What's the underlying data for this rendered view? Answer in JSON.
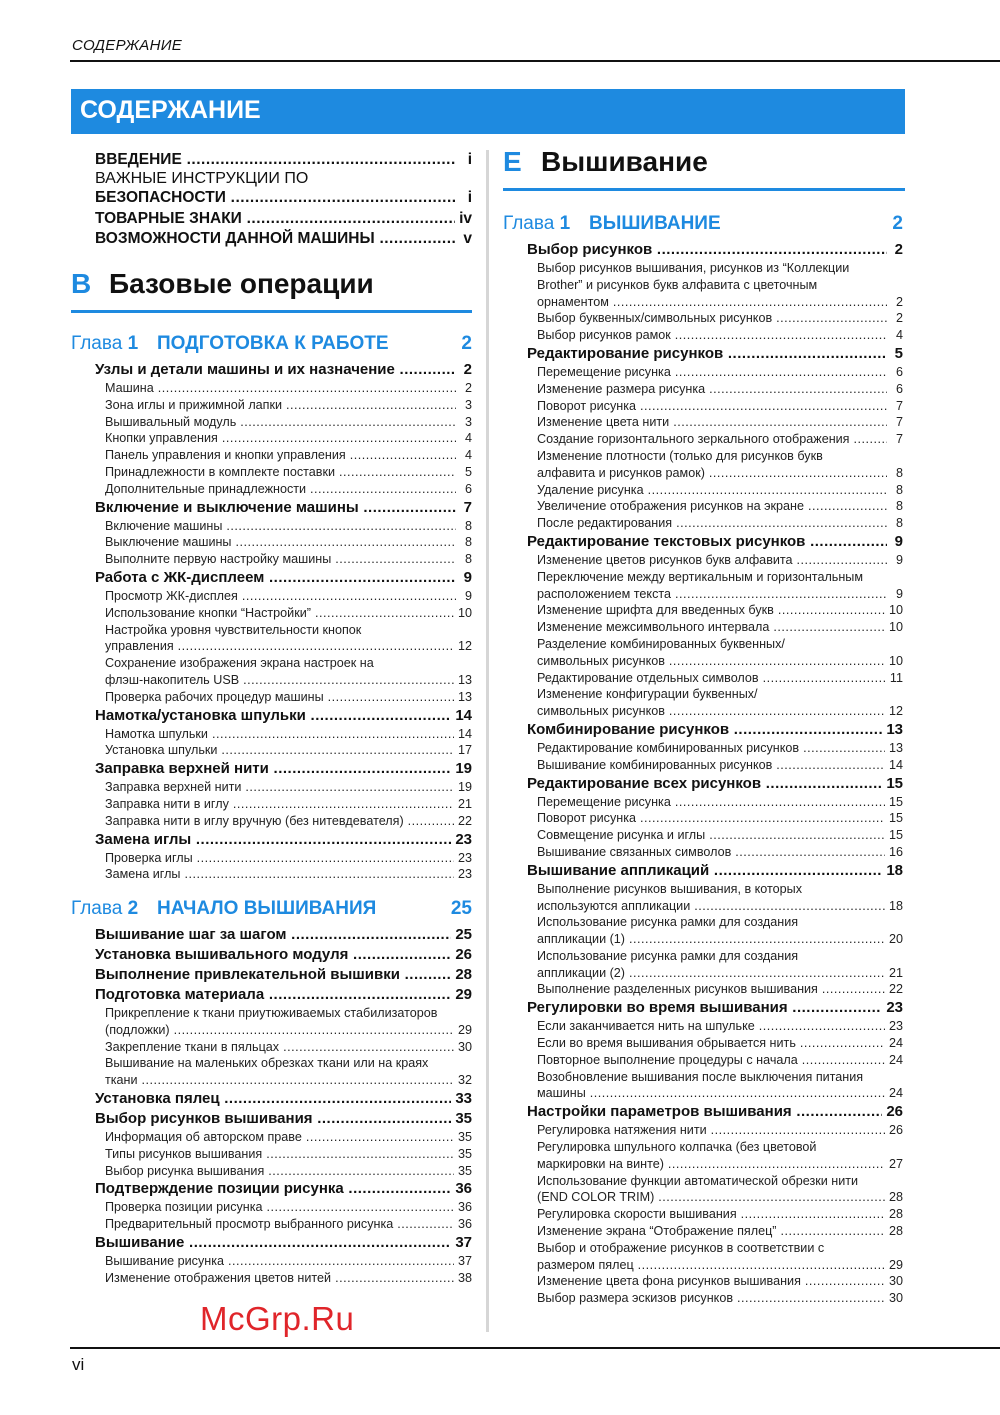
{
  "running_head": "СОДЕРЖАНИЕ",
  "banner_title": "СОДЕРЖАНИЕ",
  "page_number": "vi",
  "watermark": "McGrp.Ru",
  "accent_color": "#1e8ae0",
  "intro": [
    {
      "lines": [
        "ВВЕДЕНИЕ"
      ],
      "page": "i"
    },
    {
      "lines": [
        "ВАЖНЫЕ ИНСТРУКЦИИ ПО",
        "БЕЗОПАСНОСТИ"
      ],
      "page": "i"
    },
    {
      "lines": [
        "ТОВАРНЫЕ ЗНАКИ"
      ],
      "page": "iv"
    },
    {
      "lines": [
        "ВОЗМОЖНОСТИ ДАННОЙ МАШИНЫ"
      ],
      "page": "v"
    }
  ],
  "left": {
    "section": {
      "letter": "B",
      "title": "Базовые операции"
    },
    "chapters": [
      {
        "label": "Глава",
        "number": "1",
        "title": "ПОДГОТОВКА К РАБОТЕ",
        "page": "2",
        "items": [
          {
            "level": "main",
            "lines": [
              "Узлы и детали машины и их назначение"
            ],
            "page": "2"
          },
          {
            "level": "sub",
            "lines": [
              "Машина"
            ],
            "page": "2"
          },
          {
            "level": "sub",
            "lines": [
              "Зона иглы и прижимной лапки"
            ],
            "page": "3"
          },
          {
            "level": "sub",
            "lines": [
              "Вышивальный модуль"
            ],
            "page": "3"
          },
          {
            "level": "sub",
            "lines": [
              "Кнопки управления"
            ],
            "page": "4"
          },
          {
            "level": "sub",
            "lines": [
              "Панель управления и кнопки управления"
            ],
            "page": "4"
          },
          {
            "level": "sub",
            "lines": [
              "Принадлежности в комплекте поставки"
            ],
            "page": "5"
          },
          {
            "level": "sub",
            "lines": [
              "Дополнительные принадлежности"
            ],
            "page": "6"
          },
          {
            "level": "main",
            "lines": [
              "Включение и выключение машины"
            ],
            "page": "7"
          },
          {
            "level": "sub",
            "lines": [
              "Включение машины"
            ],
            "page": "8"
          },
          {
            "level": "sub",
            "lines": [
              "Выключение машины"
            ],
            "page": "8"
          },
          {
            "level": "sub",
            "lines": [
              "Выполните первую настройку машины"
            ],
            "page": "8"
          },
          {
            "level": "main",
            "lines": [
              "Работа с ЖК-дисплеем"
            ],
            "page": "9"
          },
          {
            "level": "sub",
            "lines": [
              "Просмотр ЖК-дисплея"
            ],
            "page": "9"
          },
          {
            "level": "sub",
            "lines": [
              "Использование кнопки “Настройки”"
            ],
            "page": "10"
          },
          {
            "level": "sub",
            "lines": [
              "Настройка уровня чувствительности кнопок",
              "управления"
            ],
            "page": "12"
          },
          {
            "level": "sub",
            "lines": [
              "Сохранение изображения экрана настроек на",
              "флэш-накопитель USB"
            ],
            "page": "13"
          },
          {
            "level": "sub",
            "lines": [
              "Проверка рабочих процедур машины"
            ],
            "page": "13"
          },
          {
            "level": "main",
            "lines": [
              "Намотка/установка шпульки"
            ],
            "page": "14"
          },
          {
            "level": "sub",
            "lines": [
              "Намотка шпульки"
            ],
            "page": "14"
          },
          {
            "level": "sub",
            "lines": [
              "Установка шпульки"
            ],
            "page": "17"
          },
          {
            "level": "main",
            "lines": [
              "Заправка верхней нити"
            ],
            "page": "19"
          },
          {
            "level": "sub",
            "lines": [
              "Заправка верхней нити"
            ],
            "page": "19"
          },
          {
            "level": "sub",
            "lines": [
              "Заправка нити в иглу"
            ],
            "page": "21"
          },
          {
            "level": "sub",
            "lines": [
              "Заправка нити в иглу вручную (без нитевдевателя)"
            ],
            "page": "22"
          },
          {
            "level": "main",
            "lines": [
              "Замена иглы"
            ],
            "page": "23"
          },
          {
            "level": "sub",
            "lines": [
              "Проверка иглы"
            ],
            "page": "23"
          },
          {
            "level": "sub",
            "lines": [
              "Замена иглы"
            ],
            "page": "23"
          }
        ]
      },
      {
        "label": "Глава",
        "number": "2",
        "title": "НАЧАЛО ВЫШИВАНИЯ",
        "page": "25",
        "items": [
          {
            "level": "main",
            "lines": [
              "Вышивание шаг за шагом"
            ],
            "page": "25"
          },
          {
            "level": "main",
            "lines": [
              "Установка вышивального модуля"
            ],
            "page": "26"
          },
          {
            "level": "main",
            "lines": [
              "Выполнение привлекательной вышивки"
            ],
            "page": "28"
          },
          {
            "level": "main",
            "lines": [
              "Подготовка материала"
            ],
            "page": "29"
          },
          {
            "level": "sub",
            "lines": [
              "Прикрепление к ткани приутюживаемых стабилизаторов",
              "(подложки)"
            ],
            "page": "29"
          },
          {
            "level": "sub",
            "lines": [
              "Закрепление ткани в пяльцах"
            ],
            "page": "30"
          },
          {
            "level": "sub",
            "lines": [
              "Вышивание на маленьких обрезках ткани или на краях",
              "ткани"
            ],
            "page": "32"
          },
          {
            "level": "main",
            "lines": [
              "Установка пялец"
            ],
            "page": "33"
          },
          {
            "level": "main",
            "lines": [
              "Выбор рисунков вышивания"
            ],
            "page": "35"
          },
          {
            "level": "sub",
            "lines": [
              "Информация об авторском праве"
            ],
            "page": "35"
          },
          {
            "level": "sub",
            "lines": [
              "Типы рисунков вышивания"
            ],
            "page": "35"
          },
          {
            "level": "sub",
            "lines": [
              "Выбор рисунка вышивания"
            ],
            "page": "35"
          },
          {
            "level": "main",
            "lines": [
              "Подтверждение позиции рисунка"
            ],
            "page": "36"
          },
          {
            "level": "sub",
            "lines": [
              "Проверка позиции рисунка"
            ],
            "page": "36"
          },
          {
            "level": "sub",
            "lines": [
              "Предварительный просмотр выбранного рисунка"
            ],
            "page": "36"
          },
          {
            "level": "main",
            "lines": [
              "Вышивание"
            ],
            "page": "37"
          },
          {
            "level": "sub",
            "lines": [
              "Вышивание рисунка"
            ],
            "page": "37"
          },
          {
            "level": "sub",
            "lines": [
              "Изменение отображения цветов нитей"
            ],
            "page": "38"
          }
        ]
      }
    ]
  },
  "right": {
    "section": {
      "letter": "E",
      "title": "Вышивание"
    },
    "chapters": [
      {
        "label": "Глава",
        "number": "1",
        "title": "ВЫШИВАНИЕ",
        "page": "2",
        "items": [
          {
            "level": "main",
            "lines": [
              "Выбор рисунков"
            ],
            "page": "2"
          },
          {
            "level": "sub",
            "lines": [
              "Выбор рисунков вышивания, рисунков из “Коллекции",
              "Brother” и рисунков букв алфавита с цветочным",
              "орнаментом"
            ],
            "page": "2"
          },
          {
            "level": "sub",
            "lines": [
              "Выбор буквенных/символьных рисунков"
            ],
            "page": "2"
          },
          {
            "level": "sub",
            "lines": [
              "Выбор рисунков рамок"
            ],
            "page": "4"
          },
          {
            "level": "main",
            "lines": [
              "Редактирование рисунков"
            ],
            "page": "5"
          },
          {
            "level": "sub",
            "lines": [
              "Перемещение рисунка"
            ],
            "page": "6"
          },
          {
            "level": "sub",
            "lines": [
              "Изменение размера рисунка"
            ],
            "page": "6"
          },
          {
            "level": "sub",
            "lines": [
              "Поворот рисунка"
            ],
            "page": "7"
          },
          {
            "level": "sub",
            "lines": [
              "Изменение цвета нити"
            ],
            "page": "7"
          },
          {
            "level": "sub",
            "lines": [
              "Создание горизонтального зеркального отображения"
            ],
            "page": "7"
          },
          {
            "level": "sub",
            "lines": [
              "Изменение плотности (только для рисунков букв",
              "алфавита и рисунков рамок)"
            ],
            "page": "8"
          },
          {
            "level": "sub",
            "lines": [
              "Удаление рисунка"
            ],
            "page": "8"
          },
          {
            "level": "sub",
            "lines": [
              "Увеличение отображения рисунков на экране"
            ],
            "page": "8"
          },
          {
            "level": "sub",
            "lines": [
              "После редактирования"
            ],
            "page": "8"
          },
          {
            "level": "main",
            "lines": [
              "Редактирование текстовых рисунков"
            ],
            "page": "9"
          },
          {
            "level": "sub",
            "lines": [
              "Изменение цветов рисунков букв алфавита"
            ],
            "page": "9"
          },
          {
            "level": "sub",
            "lines": [
              "Переключение между вертикальным и горизонтальным",
              "расположением текста"
            ],
            "page": "9"
          },
          {
            "level": "sub",
            "lines": [
              "Изменение шрифта для введенных букв"
            ],
            "page": "10"
          },
          {
            "level": "sub",
            "lines": [
              "Изменение межсимвольного интервала"
            ],
            "page": "10"
          },
          {
            "level": "sub",
            "lines": [
              "Разделение комбинированных буквенных/",
              "символьных рисунков"
            ],
            "page": "10"
          },
          {
            "level": "sub",
            "lines": [
              "Редактирование отдельных символов"
            ],
            "page": "11"
          },
          {
            "level": "sub",
            "lines": [
              "Изменение конфигурации буквенных/",
              "символьных рисунков"
            ],
            "page": "12"
          },
          {
            "level": "main",
            "lines": [
              "Комбинирование рисунков"
            ],
            "page": "13"
          },
          {
            "level": "sub",
            "lines": [
              "Редактирование комбинированных рисунков"
            ],
            "page": "13"
          },
          {
            "level": "sub",
            "lines": [
              "Вышивание комбинированных рисунков"
            ],
            "page": "14"
          },
          {
            "level": "main",
            "lines": [
              "Редактирование всех рисунков"
            ],
            "page": "15"
          },
          {
            "level": "sub",
            "lines": [
              "Перемещение рисунка"
            ],
            "page": "15"
          },
          {
            "level": "sub",
            "lines": [
              "Поворот рисунка"
            ],
            "page": "15"
          },
          {
            "level": "sub",
            "lines": [
              "Совмещение рисунка и иглы"
            ],
            "page": "15"
          },
          {
            "level": "sub",
            "lines": [
              "Вышивание связанных символов"
            ],
            "page": "16"
          },
          {
            "level": "main",
            "lines": [
              "Вышивание аппликаций"
            ],
            "page": "18"
          },
          {
            "level": "sub",
            "lines": [
              "Выполнение рисунков вышивания, в которых",
              "используются аппликации"
            ],
            "page": "18"
          },
          {
            "level": "sub",
            "lines": [
              "Использование рисунка рамки для создания",
              "аппликации (1)"
            ],
            "page": "20"
          },
          {
            "level": "sub",
            "lines": [
              "Использование рисунка рамки для создания",
              "аппликации (2)"
            ],
            "page": "21"
          },
          {
            "level": "sub",
            "lines": [
              "Выполнение разделенных рисунков вышивания"
            ],
            "page": "22"
          },
          {
            "level": "main",
            "lines": [
              "Регулировки во время вышивания"
            ],
            "page": "23"
          },
          {
            "level": "sub",
            "lines": [
              "Если заканчивается нить на шпульке"
            ],
            "page": "23"
          },
          {
            "level": "sub",
            "lines": [
              "Если во время вышивания обрывается нить"
            ],
            "page": "24"
          },
          {
            "level": "sub",
            "lines": [
              "Повторное выполнение процедуры с начала"
            ],
            "page": "24"
          },
          {
            "level": "sub",
            "lines": [
              "Возобновление вышивания после выключения питания",
              "машины"
            ],
            "page": "24"
          },
          {
            "level": "main",
            "lines": [
              "Настройки параметров вышивания"
            ],
            "page": "26"
          },
          {
            "level": "sub",
            "lines": [
              "Регулировка натяжения нити"
            ],
            "page": "26"
          },
          {
            "level": "sub",
            "lines": [
              "Регулировка шпульного колпачка (без цветовой",
              "маркировки на винте)"
            ],
            "page": "27"
          },
          {
            "level": "sub",
            "lines": [
              "Использование функции автоматической обрезки нити",
              "(END COLOR TRIM)"
            ],
            "page": "28"
          },
          {
            "level": "sub",
            "lines": [
              "Регулировка скорости вышивания"
            ],
            "page": "28"
          },
          {
            "level": "sub",
            "lines": [
              "Изменение экрана “Отображение пялец”"
            ],
            "page": "28"
          },
          {
            "level": "sub",
            "lines": [
              "Выбор и отображение рисунков в соответствии с",
              "размером пялец"
            ],
            "page": "29"
          },
          {
            "level": "sub",
            "lines": [
              "Изменение цвета фона рисунков вышивания"
            ],
            "page": "30"
          },
          {
            "level": "sub",
            "lines": [
              "Выбор размера эскизов рисунков"
            ],
            "page": "30"
          }
        ]
      }
    ]
  }
}
